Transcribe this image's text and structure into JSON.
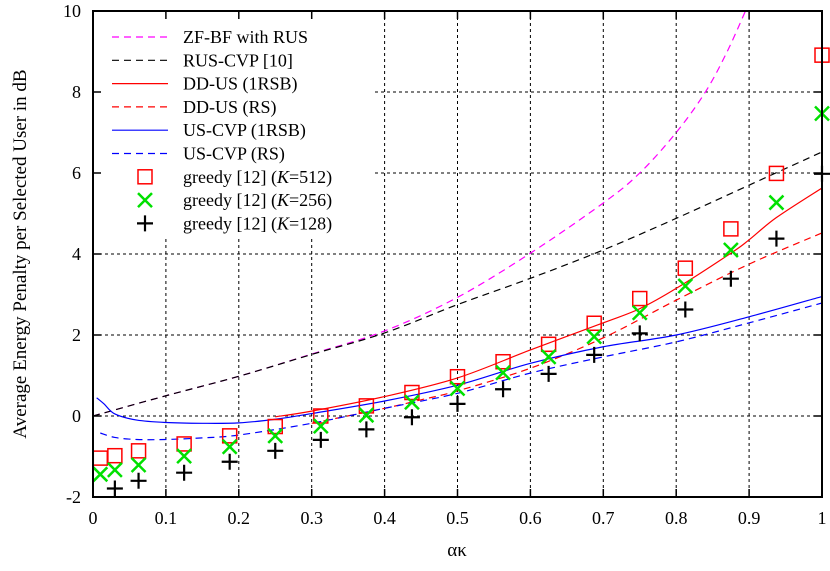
{
  "chart_data": {
    "type": "line",
    "title": "",
    "xlabel": "ακ",
    "ylabel": "Average Energy Penalty per Selected User in dB",
    "xlim": [
      0,
      1
    ],
    "ylim": [
      -2,
      10
    ],
    "xticks": [
      "0",
      "0.1",
      "0.2",
      "0.3",
      "0.4",
      "0.5",
      "0.6",
      "0.7",
      "0.8",
      "0.9",
      "1"
    ],
    "yticks": [
      "-2",
      "0",
      "2",
      "4",
      "6",
      "8",
      "10"
    ],
    "grid": true,
    "legend_position": "top-left",
    "series": [
      {
        "name": "ZF-BF with RUS",
        "style": "dashed",
        "color": "#ff00ff",
        "marker": "none",
        "x": [
          0,
          0.1,
          0.2,
          0.3,
          0.4,
          0.5,
          0.6,
          0.7,
          0.75,
          0.8,
          0.84,
          0.87,
          0.895
        ],
        "y": [
          0,
          0.5,
          0.98,
          1.53,
          2.1,
          2.93,
          4.02,
          5.26,
          6.0,
          7.0,
          8.0,
          9.0,
          10.0
        ]
      },
      {
        "name": "RUS-CVP [10]",
        "style": "dashed",
        "color": "#000000",
        "marker": "none",
        "x": [
          0,
          0.1,
          0.2,
          0.3,
          0.4,
          0.5,
          0.6,
          0.7,
          0.8,
          0.9,
          1.0
        ],
        "y": [
          0,
          0.5,
          0.98,
          1.52,
          2.05,
          2.75,
          3.4,
          4.1,
          4.88,
          5.7,
          6.52
        ]
      },
      {
        "name": "DD-US (1RSB)",
        "style": "solid",
        "color": "#ff0000",
        "marker": "none",
        "x": [
          0.25,
          0.3,
          0.4,
          0.5,
          0.6,
          0.7,
          0.75,
          0.8,
          0.875,
          0.9,
          0.9375,
          1.0
        ],
        "y": [
          -0.02,
          0.12,
          0.48,
          0.94,
          1.63,
          2.3,
          2.65,
          3.15,
          4.02,
          4.35,
          4.9,
          5.63
        ]
      },
      {
        "name": "DD-US (RS)",
        "style": "dashed",
        "color": "#ff0000",
        "marker": "none",
        "x": [
          0.3,
          0.4,
          0.45,
          0.5,
          0.6,
          0.7,
          0.8,
          0.9,
          1.0
        ],
        "y": [
          -0.18,
          0.19,
          0.4,
          0.62,
          1.18,
          1.93,
          2.86,
          3.75,
          4.52
        ]
      },
      {
        "name": "US-CVP (1RSB)",
        "style": "solid",
        "color": "#0000ff",
        "marker": "none",
        "x": [
          0.005,
          0.015,
          0.03,
          0.06,
          0.1,
          0.15,
          0.2,
          0.25,
          0.3,
          0.4,
          0.5,
          0.6,
          0.7,
          0.8,
          0.9,
          1.0
        ],
        "y": [
          0.45,
          0.3,
          0.05,
          -0.1,
          -0.16,
          -0.18,
          -0.17,
          -0.08,
          0.06,
          0.37,
          0.76,
          1.3,
          1.71,
          2.0,
          2.45,
          2.95
        ]
      },
      {
        "name": "US-CVP (RS)",
        "style": "dashed",
        "color": "#0000ff",
        "marker": "none",
        "x": [
          0.01,
          0.03,
          0.06,
          0.1,
          0.15,
          0.2,
          0.3,
          0.4,
          0.5,
          0.6,
          0.7,
          0.8,
          0.9,
          1.0
        ],
        "y": [
          -0.42,
          -0.53,
          -0.58,
          -0.58,
          -0.54,
          -0.47,
          -0.18,
          0.19,
          0.56,
          1.06,
          1.46,
          1.83,
          2.3,
          2.79
        ]
      },
      {
        "name": "greedy [12] (K=512)",
        "label_prefix": "greedy [12] (",
        "label_italic": "K",
        "label_suffix": "=512)",
        "style": "none",
        "color": "#ff0000",
        "marker": "square",
        "x": [
          0.01,
          0.03,
          0.0625,
          0.125,
          0.1875,
          0.25,
          0.3125,
          0.375,
          0.4375,
          0.5,
          0.5625,
          0.625,
          0.6875,
          0.75,
          0.8125,
          0.875,
          0.9375,
          1.0
        ],
        "y": [
          -1.04,
          -0.98,
          -0.86,
          -0.69,
          -0.49,
          -0.26,
          0.0,
          0.25,
          0.58,
          0.97,
          1.34,
          1.77,
          2.29,
          2.9,
          3.65,
          4.62,
          5.99,
          8.91
        ]
      },
      {
        "name": "greedy [12] (K=256)",
        "label_prefix": "greedy [12] (",
        "label_italic": "K",
        "label_suffix": "=256)",
        "style": "none",
        "color": "#00e000",
        "marker": "x",
        "x": [
          0.01,
          0.03,
          0.0625,
          0.125,
          0.1875,
          0.25,
          0.3125,
          0.375,
          0.4375,
          0.5,
          0.5625,
          0.625,
          0.6875,
          0.75,
          0.8125,
          0.875,
          0.9375,
          1.0
        ],
        "y": [
          -1.44,
          -1.33,
          -1.21,
          -0.99,
          -0.76,
          -0.49,
          -0.25,
          0.02,
          0.34,
          0.68,
          1.07,
          1.46,
          1.96,
          2.55,
          3.21,
          4.1,
          5.27,
          7.47
        ]
      },
      {
        "name": "greedy [12] (K=128)",
        "label_prefix": "greedy [12] (",
        "label_italic": "K",
        "label_suffix": "=128)",
        "style": "none",
        "color": "#000000",
        "marker": "plus",
        "x": [
          0.03,
          0.0625,
          0.125,
          0.1875,
          0.25,
          0.3125,
          0.375,
          0.4375,
          0.5,
          0.5625,
          0.625,
          0.6875,
          0.75,
          0.8125,
          0.875,
          0.9375,
          1.0
        ],
        "y": [
          -1.79,
          -1.6,
          -1.4,
          -1.13,
          -0.86,
          -0.59,
          -0.33,
          -0.03,
          0.3,
          0.66,
          1.04,
          1.51,
          2.04,
          2.63,
          3.39,
          4.38,
          5.98
        ]
      }
    ]
  }
}
